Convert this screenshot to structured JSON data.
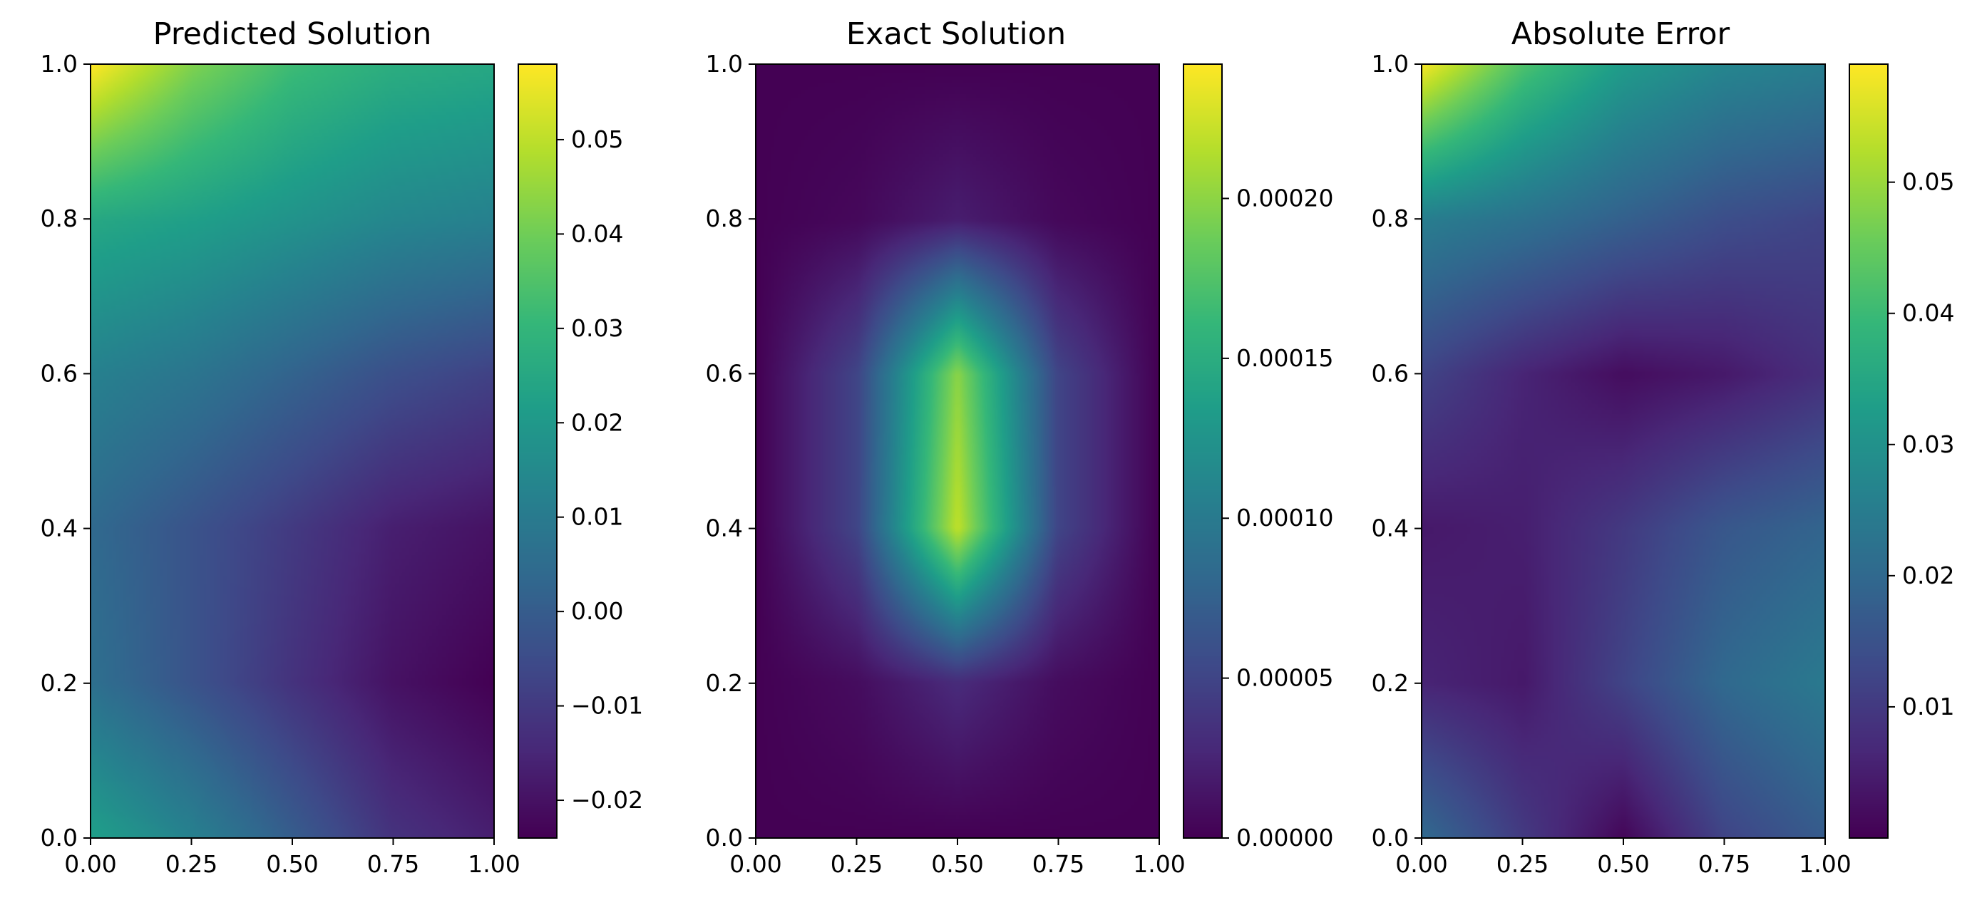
{
  "chart_data": [
    {
      "type": "heatmap",
      "title": "Predicted Solution",
      "xlabel": "",
      "ylabel": "",
      "xlim": [
        0,
        1
      ],
      "ylim": [
        0,
        1
      ],
      "x_ticks": [
        "0.00",
        "0.25",
        "0.50",
        "0.75",
        "1.00"
      ],
      "y_ticks": [
        "0.0",
        "0.2",
        "0.4",
        "0.6",
        "0.8",
        "1.0"
      ],
      "colormap": "viridis",
      "value_range": [
        -0.024,
        0.058
      ],
      "colorbar_ticks": [
        {
          "value": -0.02,
          "label": "−0.02"
        },
        {
          "value": -0.01,
          "label": "−0.01"
        },
        {
          "value": 0.0,
          "label": "0.00"
        },
        {
          "value": 0.01,
          "label": "0.01"
        },
        {
          "value": 0.02,
          "label": "0.02"
        },
        {
          "value": 0.03,
          "label": "0.03"
        },
        {
          "value": 0.04,
          "label": "0.04"
        },
        {
          "value": 0.05,
          "label": "0.05"
        }
      ],
      "field_samples": {
        "x": [
          0.0,
          0.25,
          0.5,
          0.75,
          1.0
        ],
        "y": [
          1.0,
          0.8,
          0.6,
          0.4,
          0.2,
          0.0
        ],
        "values": [
          [
            0.058,
            0.042,
            0.032,
            0.027,
            0.025
          ],
          [
            0.025,
            0.022,
            0.018,
            0.014,
            0.012
          ],
          [
            0.012,
            0.008,
            0.002,
            -0.004,
            -0.008
          ],
          [
            0.004,
            -0.003,
            -0.01,
            -0.017,
            -0.02
          ],
          [
            0.006,
            -0.003,
            -0.012,
            -0.02,
            -0.024
          ],
          [
            0.022,
            0.012,
            0.0,
            -0.012,
            -0.017
          ]
        ]
      }
    },
    {
      "type": "heatmap",
      "title": "Exact Solution",
      "xlabel": "",
      "ylabel": "",
      "xlim": [
        0,
        1
      ],
      "ylim": [
        0,
        1
      ],
      "x_ticks": [
        "0.00",
        "0.25",
        "0.50",
        "0.75",
        "1.00"
      ],
      "y_ticks": [
        "0.0",
        "0.2",
        "0.4",
        "0.6",
        "0.8",
        "1.0"
      ],
      "colormap": "viridis",
      "value_range": [
        0.0,
        0.000242
      ],
      "colorbar_ticks": [
        {
          "value": 0.0,
          "label": "0.00000"
        },
        {
          "value": 5e-05,
          "label": "0.00005"
        },
        {
          "value": 0.0001,
          "label": "0.00010"
        },
        {
          "value": 0.00015,
          "label": "0.00015"
        },
        {
          "value": 0.0002,
          "label": "0.00020"
        }
      ],
      "field_samples": {
        "x": [
          0.0,
          0.25,
          0.5,
          0.75,
          1.0
        ],
        "y": [
          1.0,
          0.8,
          0.6,
          0.4,
          0.2,
          0.0
        ],
        "values": [
          [
            0.0,
            0.0,
            0.0,
            0.0,
            0.0
          ],
          [
            0.0,
            5e-06,
            2e-05,
            5e-06,
            0.0
          ],
          [
            0.0,
            5e-05,
            0.0002,
            5e-05,
            0.0
          ],
          [
            0.0,
            5e-05,
            0.00022,
            5e-05,
            0.0
          ],
          [
            0.0,
            8e-06,
            3e-05,
            8e-06,
            0.0
          ],
          [
            0.0,
            0.0,
            0.0,
            0.0,
            0.0
          ]
        ]
      }
    },
    {
      "type": "heatmap",
      "title": "Absolute Error",
      "xlabel": "",
      "ylabel": "",
      "xlim": [
        0,
        1
      ],
      "ylim": [
        0,
        1
      ],
      "x_ticks": [
        "0.00",
        "0.25",
        "0.50",
        "0.75",
        "1.00"
      ],
      "y_ticks": [
        "0.0",
        "0.2",
        "0.4",
        "0.6",
        "0.8",
        "1.0"
      ],
      "colormap": "viridis",
      "value_range": [
        0.0,
        0.059
      ],
      "colorbar_ticks": [
        {
          "value": 0.01,
          "label": "0.01"
        },
        {
          "value": 0.02,
          "label": "0.02"
        },
        {
          "value": 0.03,
          "label": "0.03"
        },
        {
          "value": 0.04,
          "label": "0.04"
        },
        {
          "value": 0.05,
          "label": "0.05"
        }
      ],
      "field_samples": {
        "x": [
          0.0,
          0.25,
          0.5,
          0.75,
          1.0
        ],
        "y": [
          1.0,
          0.8,
          0.6,
          0.4,
          0.2,
          0.0
        ],
        "values": [
          [
            0.058,
            0.042,
            0.032,
            0.027,
            0.025
          ],
          [
            0.025,
            0.022,
            0.018,
            0.014,
            0.012
          ],
          [
            0.012,
            0.006,
            0.002,
            0.004,
            0.008
          ],
          [
            0.004,
            0.005,
            0.01,
            0.016,
            0.019
          ],
          [
            0.006,
            0.004,
            0.012,
            0.02,
            0.024
          ],
          [
            0.02,
            0.01,
            0.001,
            0.012,
            0.017
          ]
        ]
      }
    }
  ]
}
